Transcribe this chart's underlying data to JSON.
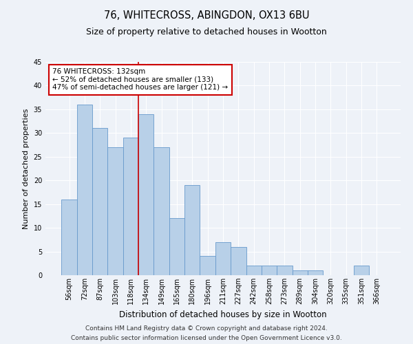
{
  "title1": "76, WHITECROSS, ABINGDON, OX13 6BU",
  "title2": "Size of property relative to detached houses in Wootton",
  "xlabel": "Distribution of detached houses by size in Wootton",
  "ylabel": "Number of detached properties",
  "categories": [
    "56sqm",
    "72sqm",
    "87sqm",
    "103sqm",
    "118sqm",
    "134sqm",
    "149sqm",
    "165sqm",
    "180sqm",
    "196sqm",
    "211sqm",
    "227sqm",
    "242sqm",
    "258sqm",
    "273sqm",
    "289sqm",
    "304sqm",
    "320sqm",
    "335sqm",
    "351sqm",
    "366sqm"
  ],
  "values": [
    16,
    36,
    31,
    27,
    29,
    34,
    27,
    12,
    19,
    4,
    7,
    6,
    2,
    2,
    2,
    1,
    1,
    0,
    0,
    2,
    0
  ],
  "bar_color": "#b8d0e8",
  "bar_edge_color": "#6699cc",
  "annotation_title": "76 WHITECROSS: 132sqm",
  "annotation_line1": "← 52% of detached houses are smaller (133)",
  "annotation_line2": "47% of semi-detached houses are larger (121) →",
  "annotation_box_color": "#ffffff",
  "annotation_box_edge": "#cc0000",
  "vline_color": "#cc0000",
  "ylim": [
    0,
    45
  ],
  "yticks": [
    0,
    5,
    10,
    15,
    20,
    25,
    30,
    35,
    40,
    45
  ],
  "footnote1": "Contains HM Land Registry data © Crown copyright and database right 2024.",
  "footnote2": "Contains public sector information licensed under the Open Government Licence v3.0.",
  "bg_color": "#eef2f8",
  "title1_fontsize": 10.5,
  "title2_fontsize": 9,
  "xlabel_fontsize": 8.5,
  "ylabel_fontsize": 8,
  "tick_fontsize": 7,
  "annot_fontsize": 7.5,
  "footnote_fontsize": 6.5,
  "vline_x": 4.5
}
